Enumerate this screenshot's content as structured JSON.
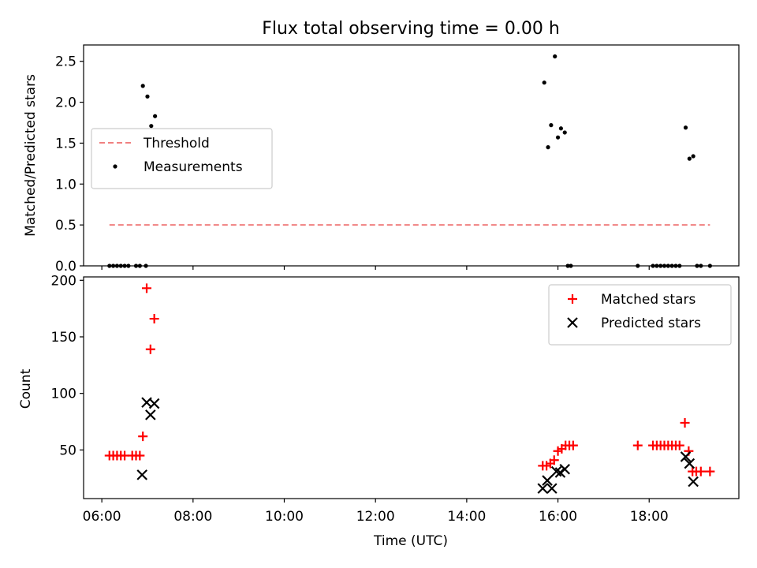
{
  "chart_data": [
    {
      "type": "scatter",
      "title": "Flux total observing time = 0.00 h",
      "xlabel": "",
      "ylabel": "Matched/Predicted stars",
      "xlim": [
        "05:36",
        "19:58"
      ],
      "ylim": [
        0,
        2.7
      ],
      "yticks": [
        "0.0",
        "0.5",
        "1.0",
        "1.5",
        "2.0",
        "2.5"
      ],
      "legend_position": "upper-left",
      "threshold": {
        "name": "Threshold",
        "color": "#f08080",
        "style": "dashed",
        "value": 0.5,
        "x_range": [
          "06:10",
          "19:20"
        ]
      },
      "series": [
        {
          "name": "Measurements",
          "color": "#000000",
          "marker": "dot",
          "points": [
            [
              "06:10",
              0
            ],
            [
              "06:15",
              0
            ],
            [
              "06:20",
              0
            ],
            [
              "06:25",
              0
            ],
            [
              "06:30",
              0
            ],
            [
              "06:35",
              0
            ],
            [
              "06:45",
              0
            ],
            [
              "06:50",
              0
            ],
            [
              "06:54",
              2.2
            ],
            [
              "06:58",
              0
            ],
            [
              "07:00",
              2.07
            ],
            [
              "07:05",
              1.71
            ],
            [
              "07:10",
              1.83
            ],
            [
              "15:42",
              2.24
            ],
            [
              "15:47",
              1.45
            ],
            [
              "15:51",
              1.72
            ],
            [
              "15:56",
              2.56
            ],
            [
              "16:00",
              1.57
            ],
            [
              "16:04",
              1.68
            ],
            [
              "16:09",
              1.63
            ],
            [
              "16:13",
              0
            ],
            [
              "16:17",
              0
            ],
            [
              "17:45",
              0
            ],
            [
              "18:05",
              0
            ],
            [
              "18:10",
              0
            ],
            [
              "18:15",
              0
            ],
            [
              "18:20",
              0
            ],
            [
              "18:25",
              0
            ],
            [
              "18:30",
              0
            ],
            [
              "18:35",
              0
            ],
            [
              "18:40",
              0
            ],
            [
              "18:48",
              1.69
            ],
            [
              "18:53",
              1.31
            ],
            [
              "18:58",
              1.34
            ],
            [
              "19:03",
              0
            ],
            [
              "19:08",
              0
            ],
            [
              "19:20",
              0
            ]
          ]
        }
      ]
    },
    {
      "type": "scatter",
      "title": "",
      "xlabel": "Time (UTC)",
      "ylabel": "Count",
      "xlim": [
        "05:36",
        "19:58"
      ],
      "ylim": [
        7,
        203
      ],
      "xticks": [
        "06:00",
        "08:00",
        "10:00",
        "12:00",
        "14:00",
        "16:00",
        "18:00"
      ],
      "yticks": [
        "50",
        "100",
        "150",
        "200"
      ],
      "legend_position": "upper-right",
      "series": [
        {
          "name": "Matched stars",
          "color": "#ff0000",
          "marker": "plus",
          "points": [
            [
              "06:10",
              45
            ],
            [
              "06:15",
              45
            ],
            [
              "06:20",
              45
            ],
            [
              "06:25",
              45
            ],
            [
              "06:30",
              45
            ],
            [
              "06:40",
              45
            ],
            [
              "06:45",
              45
            ],
            [
              "06:50",
              45
            ],
            [
              "06:54",
              62
            ],
            [
              "06:59",
              193
            ],
            [
              "07:04",
              139
            ],
            [
              "07:09",
              166
            ],
            [
              "15:40",
              36
            ],
            [
              "15:45",
              36
            ],
            [
              "15:50",
              38
            ],
            [
              "15:55",
              41
            ],
            [
              "16:00",
              49
            ],
            [
              "16:05",
              51
            ],
            [
              "16:10",
              54
            ],
            [
              "16:15",
              54
            ],
            [
              "16:20",
              54
            ],
            [
              "17:45",
              54
            ],
            [
              "18:05",
              54
            ],
            [
              "18:10",
              54
            ],
            [
              "18:15",
              54
            ],
            [
              "18:20",
              54
            ],
            [
              "18:25",
              54
            ],
            [
              "18:30",
              54
            ],
            [
              "18:35",
              54
            ],
            [
              "18:40",
              54
            ],
            [
              "18:47",
              74
            ],
            [
              "18:52",
              49
            ],
            [
              "18:57",
              31
            ],
            [
              "19:02",
              31
            ],
            [
              "19:08",
              31
            ],
            [
              "19:20",
              31
            ]
          ]
        },
        {
          "name": "Predicted stars",
          "color": "#000000",
          "marker": "x",
          "points": [
            [
              "06:53",
              28
            ],
            [
              "06:59",
              92
            ],
            [
              "07:04",
              81
            ],
            [
              "07:09",
              91
            ],
            [
              "15:40",
              16
            ],
            [
              "15:46",
              23
            ],
            [
              "15:52",
              16
            ],
            [
              "15:58",
              31
            ],
            [
              "16:03",
              30
            ],
            [
              "16:09",
              33
            ],
            [
              "18:48",
              44
            ],
            [
              "18:53",
              38
            ],
            [
              "18:58",
              22
            ]
          ]
        }
      ]
    }
  ]
}
